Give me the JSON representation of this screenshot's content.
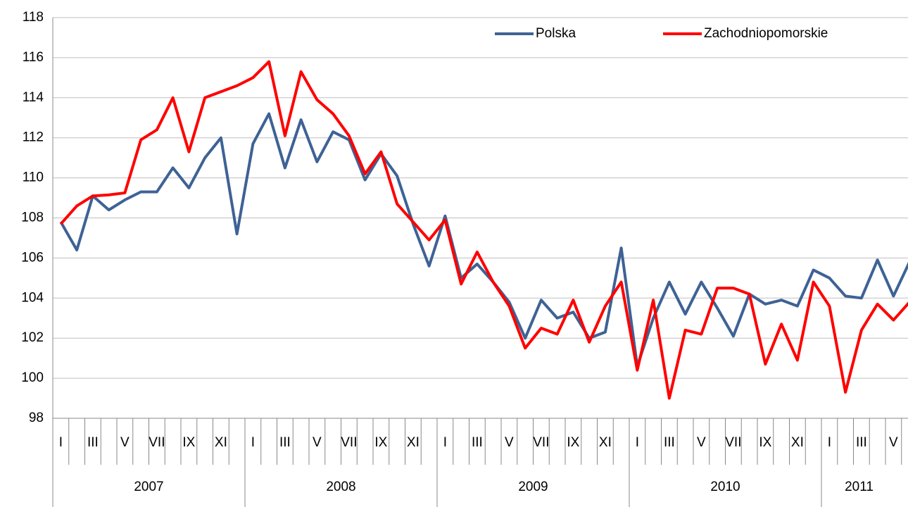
{
  "chart_data": {
    "type": "line",
    "categories": [
      "I",
      null,
      "III",
      null,
      "V",
      null,
      "VII",
      null,
      "IX",
      null,
      "XI",
      null,
      "I",
      null,
      "III",
      null,
      "V",
      null,
      "VII",
      null,
      "IX",
      null,
      "XI",
      null,
      "I",
      null,
      "III",
      null,
      "V",
      null,
      "VII",
      null,
      "IX",
      null,
      "XI",
      null,
      "I",
      null,
      "III",
      null,
      "V",
      null,
      "VII",
      null,
      "IX",
      null,
      "XI",
      null,
      "I",
      null,
      "III",
      null,
      "V",
      null
    ],
    "groups": [
      {
        "name": "2007",
        "count": 12
      },
      {
        "name": "2008",
        "count": 12
      },
      {
        "name": "2009",
        "count": 12
      },
      {
        "name": "2010",
        "count": 12
      },
      {
        "name": "2011",
        "count": 6
      }
    ],
    "series": [
      {
        "name": "Polska",
        "color": "#3e6295",
        "values": [
          107.8,
          106.4,
          109.1,
          108.4,
          108.9,
          109.3,
          109.3,
          110.5,
          109.5,
          111.0,
          112.0,
          107.2,
          111.7,
          113.2,
          110.5,
          112.9,
          110.8,
          112.3,
          111.9,
          109.9,
          111.2,
          110.1,
          107.7,
          105.6,
          108.1,
          105.0,
          105.7,
          104.8,
          103.8,
          102.0,
          103.9,
          103.0,
          103.3,
          102.0,
          102.3,
          106.5,
          100.6,
          103.0,
          104.8,
          103.2,
          104.8,
          103.5,
          102.1,
          104.2,
          103.7,
          103.9,
          103.6,
          105.4,
          105.0,
          104.1,
          104.0,
          105.9,
          104.1,
          105.8
        ]
      },
      {
        "name": "Zachodniopomorskie",
        "color": "#ff0000",
        "values": [
          107.7,
          108.6,
          109.1,
          109.15,
          109.25,
          111.9,
          112.4,
          114.0,
          111.3,
          114.0,
          114.3,
          114.6,
          115.0,
          115.8,
          112.1,
          115.3,
          113.9,
          113.2,
          112.1,
          110.2,
          111.3,
          108.7,
          107.8,
          106.9,
          107.9,
          104.7,
          106.3,
          104.8,
          103.6,
          101.5,
          102.5,
          102.2,
          103.9,
          101.8,
          103.6,
          104.8,
          100.4,
          103.9,
          99.0,
          102.4,
          102.2,
          104.5,
          104.5,
          104.2,
          100.7,
          102.7,
          100.9,
          104.8,
          103.6,
          99.3,
          102.4,
          103.7,
          102.9,
          103.8
        ]
      }
    ],
    "ylim": [
      98,
      118
    ],
    "yticks": [
      98,
      100,
      102,
      104,
      106,
      108,
      110,
      112,
      114,
      116,
      118
    ],
    "grid": true,
    "legend": "top-right"
  }
}
